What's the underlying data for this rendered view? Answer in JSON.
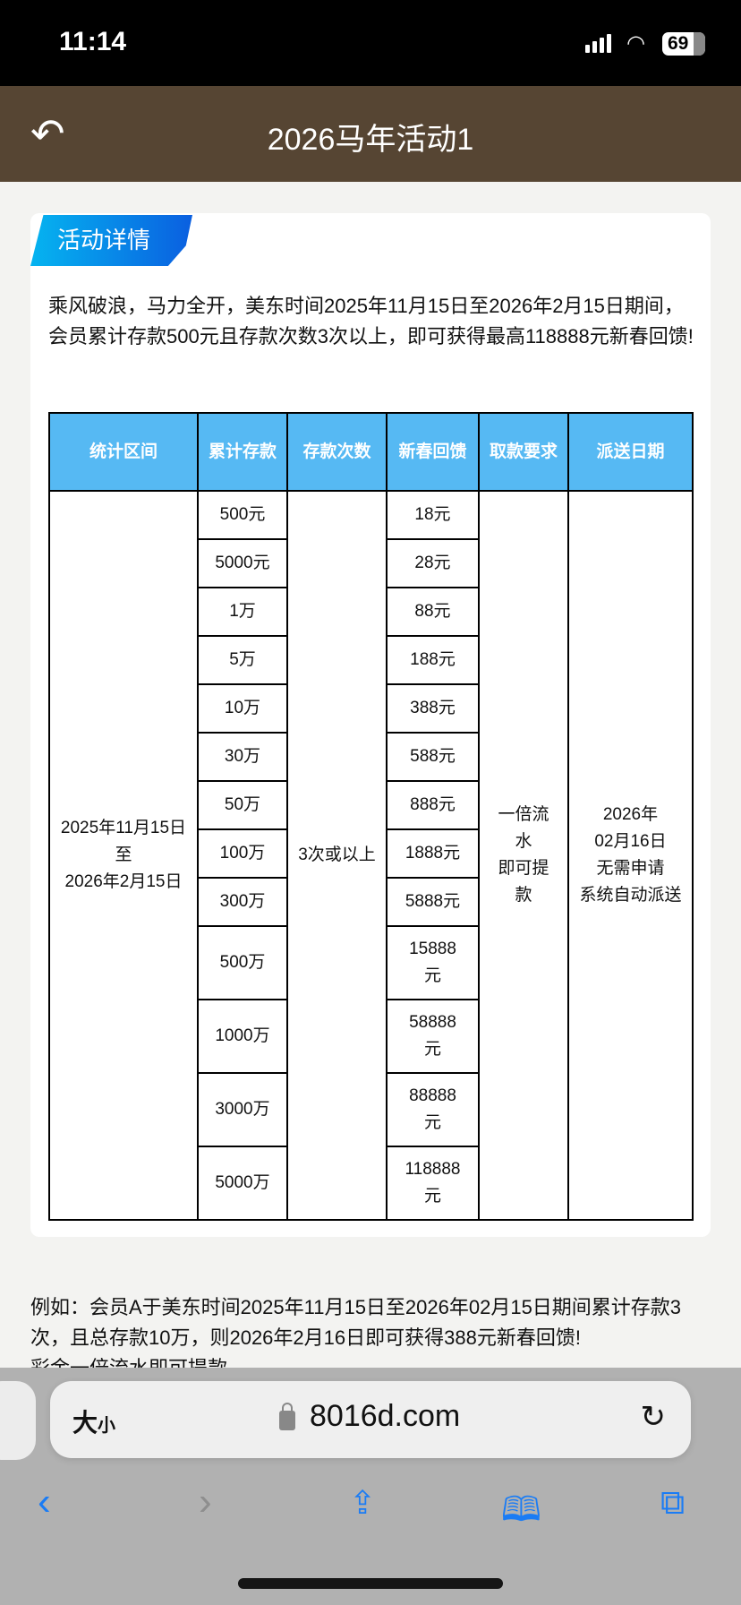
{
  "status_bar": {
    "time": "11:14",
    "battery": "69"
  },
  "header": {
    "title": "2026马年活动1",
    "back_icon": "reply-arrow-icon"
  },
  "section": {
    "tag": "活动详情",
    "intro": "乘风破浪，马力全开，美东时间2025年11月15日至2026年2月15日期间，会员累计存款500元且存款次数3次以上，即可获得最高118888元新春回馈!"
  },
  "table": {
    "headers": [
      "统计区间",
      "累计存款",
      "存款次数",
      "新春回馈",
      "取款要求",
      "派送日期"
    ],
    "period": "2025年11月15日\n至\n2026年2月15日",
    "count": "3次或以上",
    "requirement": "一倍流水\n即可提款",
    "delivery": "2026年\n02月16日\n无需申请\n系统自动派送",
    "rows": [
      {
        "deposit": "500元",
        "reward": "18元"
      },
      {
        "deposit": "5000元",
        "reward": "28元"
      },
      {
        "deposit": "1万",
        "reward": "88元"
      },
      {
        "deposit": "5万",
        "reward": "188元"
      },
      {
        "deposit": "10万",
        "reward": "388元"
      },
      {
        "deposit": "30万",
        "reward": "588元"
      },
      {
        "deposit": "50万",
        "reward": "888元"
      },
      {
        "deposit": "100万",
        "reward": "1888元"
      },
      {
        "deposit": "300万",
        "reward": "5888元"
      },
      {
        "deposit": "500万",
        "reward": "15888元"
      },
      {
        "deposit": "1000万",
        "reward": "58888元"
      },
      {
        "deposit": "3000万",
        "reward": "88888元"
      },
      {
        "deposit": "5000万",
        "reward": "118888元"
      }
    ]
  },
  "example": "例如：会员A于美东时间2025年11月15日至2026年02月15日期间累计存款3次，且总存款10万，则2026年2月16日即可获得388元新春回馈!\n彩金一倍流水即可提款",
  "browser": {
    "text_size": "大",
    "text_size_small": "小",
    "domain": "8016d.com"
  }
}
